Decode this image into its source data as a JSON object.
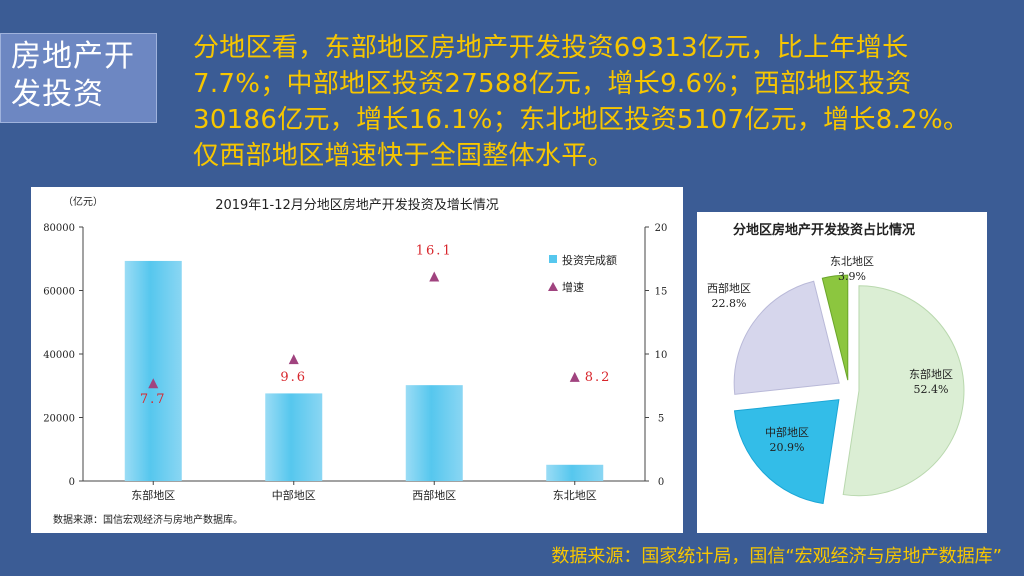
{
  "slide": {
    "title_line1": "房地产开",
    "title_line2": "发投资",
    "summary": "分地区看，东部地区房地产开发投资69313亿元，比上年增长7.7%；中部地区投资27588亿元，增长9.6%；西部地区投资30186亿元，增长16.1%；东北地区投资5107亿元，增长8.2%。仅西部地区增速快于全国整体水平。",
    "source": "数据来源：国家统计局，国信“宏观经济与房地产数据库”"
  },
  "colors": {
    "background": "#3b5c95",
    "accent_text": "#f7c600",
    "bar": "#56c7ee",
    "marker": "#a0437f",
    "pie_east": "#dbeed4",
    "pie_central": "#33bde8",
    "pie_west": "#d6d6ec",
    "pie_northeast": "#8cc63f"
  },
  "chart_data": [
    {
      "type": "bar",
      "title": "2019年1-12月分地区房地产开发投资及增长情况",
      "ylabel": "（亿元）",
      "categories": [
        "东部地区",
        "中部地区",
        "西部地区",
        "东北地区"
      ],
      "ylim": [
        0,
        80000
      ],
      "yticks": [
        0,
        20000,
        40000,
        60000,
        80000
      ],
      "y2lim": [
        0,
        20
      ],
      "y2ticks": [
        0,
        5,
        10,
        15,
        20
      ],
      "series": [
        {
          "name": "投资完成额",
          "type": "bar",
          "axis": "left",
          "values": [
            69313,
            27588,
            30186,
            5107
          ]
        },
        {
          "name": "增速",
          "type": "scatter",
          "axis": "right",
          "values": [
            7.7,
            9.6,
            16.1,
            8.2
          ],
          "labels": [
            "7.7",
            "9.6",
            "16.1",
            "8.2"
          ]
        }
      ],
      "note": "数据来源：国信宏观经济与房地产数据库。",
      "legend": "top-right",
      "grid": false
    },
    {
      "type": "pie",
      "title": "分地区房地产开发投资占比情况",
      "slices": [
        {
          "label": "东部地区",
          "value": 52.4,
          "text": "52.4%"
        },
        {
          "label": "中部地区",
          "value": 20.9,
          "text": "20.9%"
        },
        {
          "label": "西部地区",
          "value": 22.8,
          "text": "22.8%"
        },
        {
          "label": "东北地区",
          "value": 3.9,
          "text": "3.9%"
        }
      ]
    }
  ]
}
